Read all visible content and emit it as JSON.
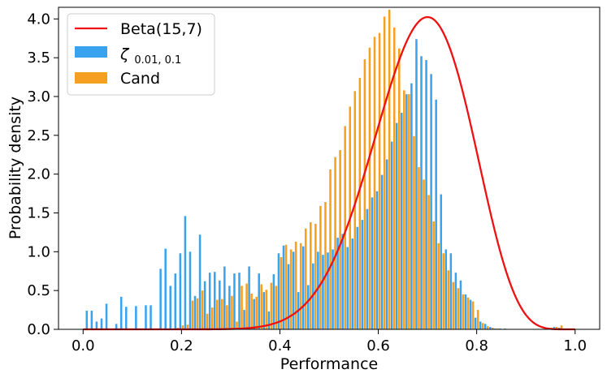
{
  "chart_data": {
    "type": "bar",
    "xlabel": "Performance",
    "ylabel": "Probability density",
    "xlim": [
      -0.05,
      1.05
    ],
    "ylim": [
      0,
      4.15
    ],
    "xticks": [
      0.0,
      0.2,
      0.4,
      0.6,
      0.8,
      1.0
    ],
    "xtick_labels": [
      "0.0",
      "0.2",
      "0.4",
      "0.6",
      "0.8",
      "1.0"
    ],
    "yticks": [
      0.0,
      0.5,
      1.0,
      1.5,
      2.0,
      2.5,
      3.0,
      3.5,
      4.0
    ],
    "ytick_labels": [
      "0.0",
      "0.5",
      "1.0",
      "1.5",
      "2.0",
      "2.5",
      "3.0",
      "3.5",
      "4.0"
    ],
    "bin_width": 0.01,
    "grid": false,
    "legend_position": "top-left",
    "colors": {
      "zeta": "#3aa3f0",
      "cand": "#f5a020",
      "beta": "#ee1111"
    },
    "series": [
      {
        "name": "ζ0.01,0.1",
        "legend_main": "ζ",
        "legend_sub": "0.01, 0.1",
        "kind": "histogram",
        "x": [
          0.01,
          0.02,
          0.03,
          0.04,
          0.05,
          0.07,
          0.08,
          0.09,
          0.11,
          0.13,
          0.14,
          0.16,
          0.17,
          0.18,
          0.19,
          0.2,
          0.21,
          0.22,
          0.23,
          0.24,
          0.25,
          0.26,
          0.27,
          0.28,
          0.29,
          0.3,
          0.31,
          0.32,
          0.33,
          0.34,
          0.35,
          0.36,
          0.37,
          0.38,
          0.39,
          0.4,
          0.41,
          0.42,
          0.43,
          0.44,
          0.45,
          0.46,
          0.47,
          0.48,
          0.49,
          0.5,
          0.51,
          0.52,
          0.53,
          0.54,
          0.55,
          0.56,
          0.57,
          0.58,
          0.59,
          0.6,
          0.61,
          0.62,
          0.63,
          0.64,
          0.65,
          0.66,
          0.67,
          0.68,
          0.69,
          0.7,
          0.71,
          0.72,
          0.73,
          0.74,
          0.75,
          0.76,
          0.77,
          0.78,
          0.79,
          0.8,
          0.81,
          0.82,
          0.83,
          0.84,
          0.85,
          0.86,
          0.87,
          0.88,
          0.89,
          0.9,
          0.91,
          0.92,
          0.93,
          0.94,
          0.95,
          0.96,
          0.97,
          0.98
        ],
        "values": [
          0.24,
          0.24,
          0.1,
          0.14,
          0.33,
          0.07,
          0.42,
          0.29,
          0.3,
          0.31,
          0.31,
          0.78,
          1.04,
          0.56,
          0.72,
          0.98,
          1.46,
          1.0,
          0.43,
          1.22,
          0.62,
          0.73,
          0.74,
          0.63,
          0.81,
          0.56,
          0.72,
          0.73,
          0.25,
          0.81,
          0.39,
          0.72,
          0.48,
          0.23,
          0.71,
          0.98,
          1.08,
          0.84,
          1.0,
          0.48,
          1.07,
          0.57,
          0.85,
          1.0,
          0.96,
          0.99,
          1.03,
          1.18,
          1.23,
          1.06,
          1.17,
          1.32,
          1.41,
          1.55,
          1.7,
          1.78,
          1.99,
          2.19,
          2.42,
          2.66,
          2.79,
          3.03,
          3.17,
          3.74,
          3.52,
          3.47,
          3.29,
          2.96,
          1.74,
          1.03,
          0.98,
          0.73,
          0.63,
          0.45,
          0.38,
          0.15,
          0.1,
          0.07,
          0.03,
          0.01,
          0.01,
          0.01,
          0.0,
          0.0,
          0.0,
          0.0,
          0.0,
          0.0,
          0.0,
          0.0,
          0.0,
          0.03,
          0.02,
          0.0
        ]
      },
      {
        "name": "Cand",
        "kind": "histogram",
        "x": [
          0.19,
          0.2,
          0.21,
          0.22,
          0.23,
          0.24,
          0.25,
          0.26,
          0.27,
          0.28,
          0.29,
          0.3,
          0.31,
          0.32,
          0.33,
          0.34,
          0.35,
          0.36,
          0.37,
          0.38,
          0.39,
          0.4,
          0.41,
          0.42,
          0.43,
          0.44,
          0.45,
          0.46,
          0.47,
          0.48,
          0.49,
          0.5,
          0.51,
          0.52,
          0.53,
          0.54,
          0.55,
          0.56,
          0.57,
          0.58,
          0.59,
          0.6,
          0.61,
          0.62,
          0.63,
          0.64,
          0.65,
          0.66,
          0.67,
          0.68,
          0.69,
          0.7,
          0.71,
          0.72,
          0.73,
          0.74,
          0.75,
          0.76,
          0.77,
          0.78,
          0.79,
          0.8,
          0.81,
          0.82,
          0.83,
          0.84,
          0.85,
          0.86,
          0.87,
          0.88,
          0.89,
          0.9,
          0.91,
          0.92,
          0.93,
          0.94,
          0.95,
          0.96,
          0.97,
          0.98
        ],
        "values": [
          0.02,
          0.05,
          0.06,
          0.37,
          0.4,
          0.5,
          0.2,
          0.28,
          0.38,
          0.39,
          0.31,
          0.43,
          0.1,
          0.56,
          0.59,
          0.46,
          0.42,
          0.58,
          0.51,
          0.6,
          0.56,
          0.93,
          1.09,
          1.03,
          1.13,
          1.11,
          1.3,
          1.38,
          1.36,
          1.59,
          1.64,
          2.06,
          2.22,
          2.31,
          2.62,
          2.87,
          3.07,
          3.24,
          3.48,
          3.63,
          3.77,
          3.82,
          4.03,
          4.12,
          3.89,
          3.62,
          3.08,
          3.03,
          2.49,
          2.09,
          1.93,
          1.73,
          1.39,
          1.11,
          0.98,
          0.76,
          0.61,
          0.53,
          0.45,
          0.41,
          0.36,
          0.25,
          0.08,
          0.04,
          0.02,
          0.01,
          0.0,
          0.0,
          0.0,
          0.0,
          0.0,
          0.0,
          0.0,
          0.0,
          0.0,
          0.0,
          0.02,
          0.03,
          0.05,
          0.0
        ]
      },
      {
        "name": "Beta(15,7)",
        "kind": "line",
        "alpha": 15,
        "beta": 7
      }
    ]
  }
}
